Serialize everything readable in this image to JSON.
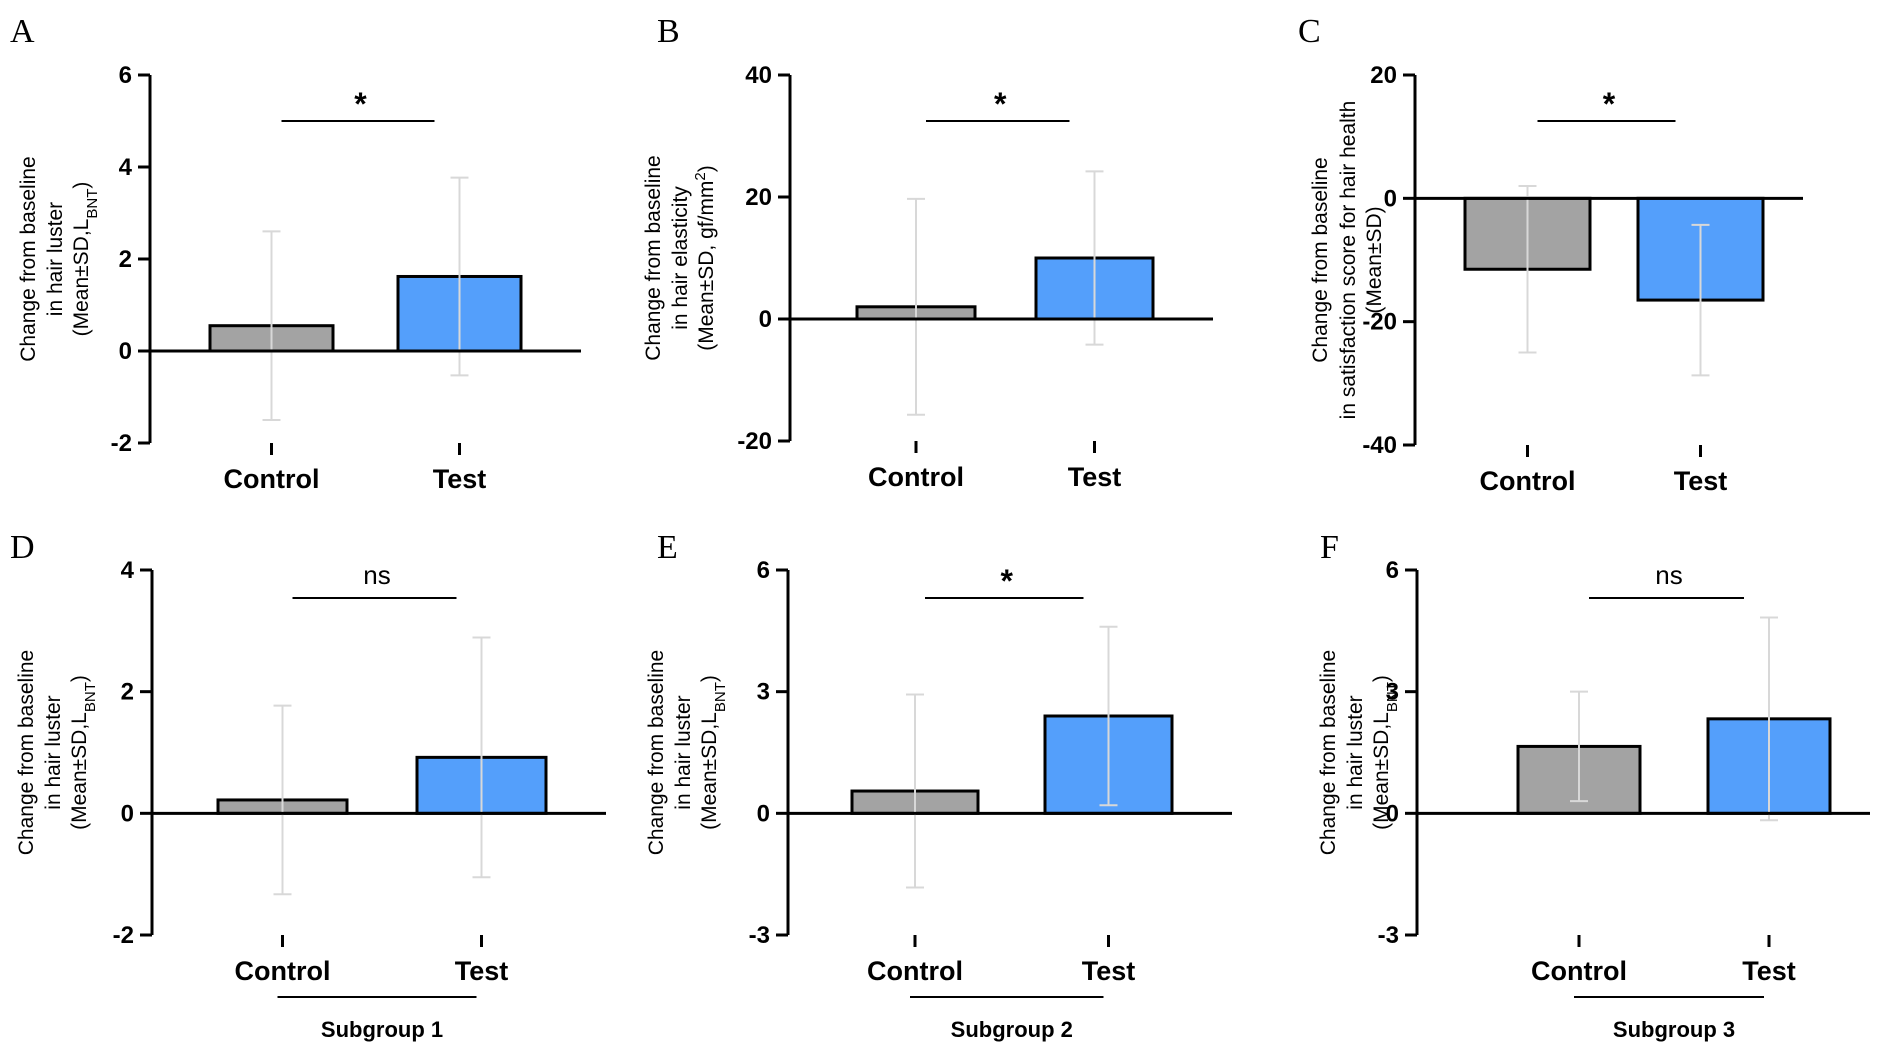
{
  "colors": {
    "control": "#a3a3a3",
    "test": "#549ffb",
    "errorbar": "#d8d8d8",
    "axis": "#000000"
  },
  "chart_data": [
    {
      "panel": "A",
      "type": "bar",
      "categories": [
        "Control",
        "Test"
      ],
      "values": [
        0.55,
        1.62
      ],
      "sd": [
        2.05,
        2.15
      ],
      "ylim": [
        -2,
        6
      ],
      "ticks": [
        -2,
        0,
        2,
        4,
        6
      ],
      "ylabel_lines": [
        "Change from baseline",
        "in hair luster"
      ],
      "ylabel_units": {
        "prefix": "(Mean±SD,L",
        "sub": "BNT",
        "suffix": ")",
        "sup": ""
      },
      "significance": "*",
      "subgroup": ""
    },
    {
      "panel": "B",
      "type": "bar",
      "categories": [
        "Control",
        "Test"
      ],
      "values": [
        2.0,
        10.0
      ],
      "sd": [
        17.7,
        14.2
      ],
      "ylim": [
        -20,
        40
      ],
      "ticks": [
        -20,
        0,
        20,
        40
      ],
      "ylabel_lines": [
        "Change from baseline",
        "in hair elasticity"
      ],
      "ylabel_units": {
        "prefix": "(Mean±SD, gf/mm",
        "sub": "",
        "suffix": ")",
        "sup": "2"
      },
      "significance": "*",
      "subgroup": ""
    },
    {
      "panel": "C",
      "type": "bar",
      "categories": [
        "Control",
        "Test"
      ],
      "values": [
        -11.5,
        -16.5
      ],
      "sd": [
        13.5,
        12.2
      ],
      "ylim": [
        -40,
        20
      ],
      "ticks": [
        -40,
        -20,
        0,
        20
      ],
      "ylabel_lines": [
        "Change from baseline",
        "in satisfaction score for hair health"
      ],
      "ylabel_units": {
        "prefix": "(Mean±SD)",
        "sub": "",
        "suffix": "",
        "sup": ""
      },
      "significance": "*",
      "subgroup": ""
    },
    {
      "panel": "D",
      "type": "bar",
      "categories": [
        "Control",
        "Test"
      ],
      "values": [
        0.22,
        0.92
      ],
      "sd": [
        1.55,
        1.97
      ],
      "ylim": [
        -2,
        4
      ],
      "ticks": [
        -2,
        0,
        2,
        4
      ],
      "ylabel_lines": [
        "Change from baseline",
        "in hair luster"
      ],
      "ylabel_units": {
        "prefix": "(Mean±SD,L",
        "sub": "BNT",
        "suffix": ")",
        "sup": ""
      },
      "significance": "ns",
      "subgroup": "Subgroup 1"
    },
    {
      "panel": "E",
      "type": "bar",
      "categories": [
        "Control",
        "Test"
      ],
      "values": [
        0.55,
        2.4
      ],
      "sd": [
        2.38,
        2.2
      ],
      "ylim": [
        -3,
        6
      ],
      "ticks": [
        -3,
        0,
        3,
        6
      ],
      "ylabel_lines": [
        "Change from baseline",
        "in hair luster"
      ],
      "ylabel_units": {
        "prefix": "(Mean±SD,L",
        "sub": "BNT",
        "suffix": ")",
        "sup": ""
      },
      "significance": "*",
      "subgroup": "Subgroup 2"
    },
    {
      "panel": "F",
      "type": "bar",
      "categories": [
        "Control",
        "Test"
      ],
      "values": [
        1.65,
        2.33
      ],
      "sd": [
        1.35,
        2.5
      ],
      "ylim": [
        -3,
        6
      ],
      "ticks": [
        -3,
        0,
        3,
        6
      ],
      "ylabel_lines": [
        "Change from baseline",
        "in hair luster"
      ],
      "ylabel_units": {
        "prefix": "(Mean±SD,L",
        "sub": "BNT",
        "suffix": ")",
        "sup": ""
      },
      "significance": "ns",
      "subgroup": "Subgroup 3"
    }
  ]
}
